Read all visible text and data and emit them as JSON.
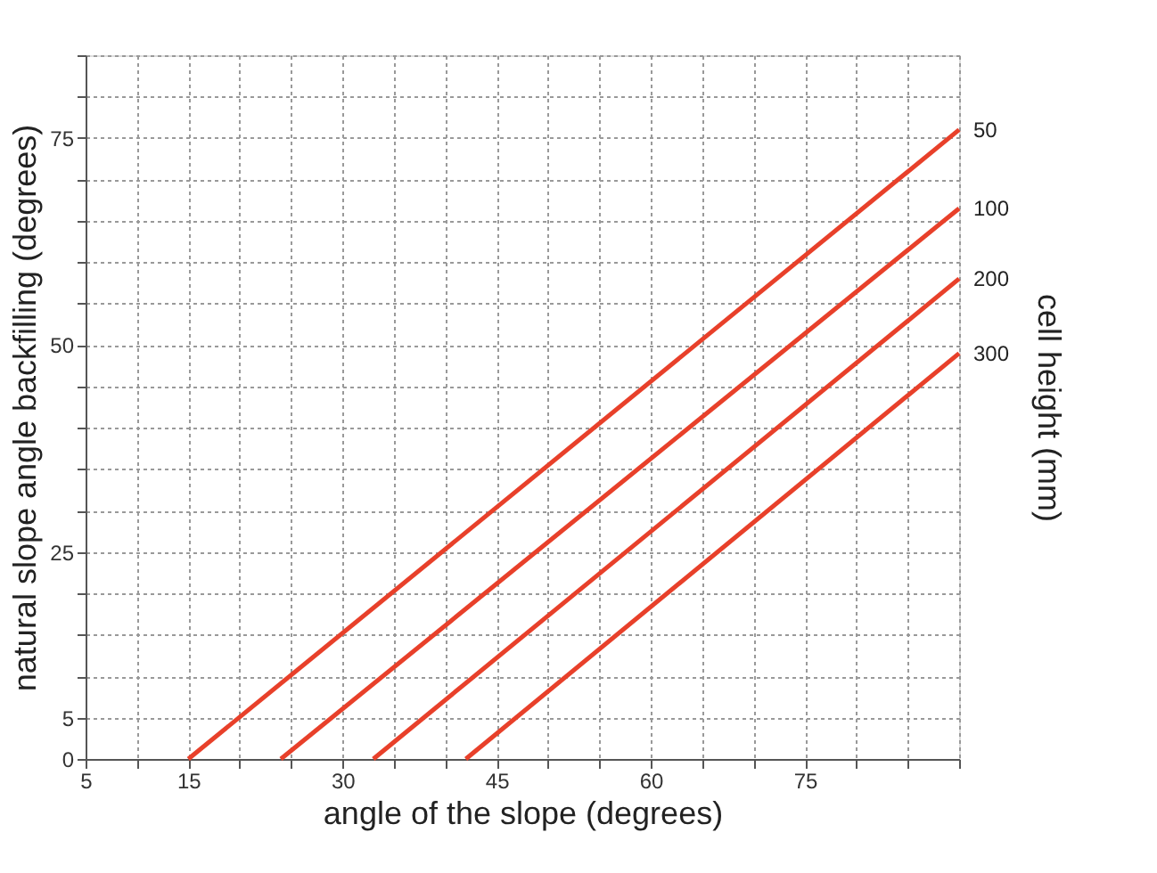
{
  "chart_data": {
    "type": "line",
    "xlabel": "angle of the slope (degrees)",
    "ylabel": "natural slope angle backfilling (degrees)",
    "y2label": "cell height (mm)",
    "xlim": [
      5,
      90
    ],
    "ylim": [
      0,
      85
    ],
    "xticks": [
      5,
      {
        "value": 10,
        "label": null
      },
      15,
      {
        "value": 20,
        "label": null
      },
      {
        "value": 25,
        "label": null
      },
      30,
      {
        "value": 35,
        "label": null
      },
      {
        "value": 40,
        "label": null
      },
      45,
      {
        "value": 50,
        "label": null
      },
      {
        "value": 55,
        "label": null
      },
      60,
      {
        "value": 65,
        "label": null
      },
      {
        "value": 70,
        "label": null
      },
      75,
      {
        "value": 80,
        "label": null
      },
      {
        "value": 85,
        "label": null
      },
      {
        "value": 90,
        "label": null
      }
    ],
    "yticks": [
      0,
      5,
      {
        "value": 10,
        "label": null
      },
      {
        "value": 15,
        "label": null
      },
      {
        "value": 20,
        "label": null
      },
      25,
      {
        "value": 30,
        "label": null
      },
      {
        "value": 35,
        "label": null
      },
      {
        "value": 40,
        "label": null
      },
      {
        "value": 45,
        "label": null
      },
      50,
      {
        "value": 55,
        "label": null
      },
      {
        "value": 60,
        "label": null
      },
      {
        "value": 65,
        "label": null
      },
      {
        "value": 70,
        "label": null
      },
      75,
      {
        "value": 80,
        "label": null
      },
      {
        "value": 85,
        "label": null
      }
    ],
    "grid": true,
    "series": [
      {
        "name": "50",
        "color": "#e8402a",
        "x": [
          15,
          90
        ],
        "values": [
          0,
          76
        ]
      },
      {
        "name": "100",
        "color": "#e8402a",
        "x": [
          24,
          90
        ],
        "values": [
          0,
          66.5
        ]
      },
      {
        "name": "200",
        "color": "#e8402a",
        "x": [
          33,
          90
        ],
        "values": [
          0,
          58
        ]
      },
      {
        "name": "300",
        "color": "#e8402a",
        "x": [
          42,
          90
        ],
        "values": [
          0,
          49
        ]
      }
    ]
  }
}
